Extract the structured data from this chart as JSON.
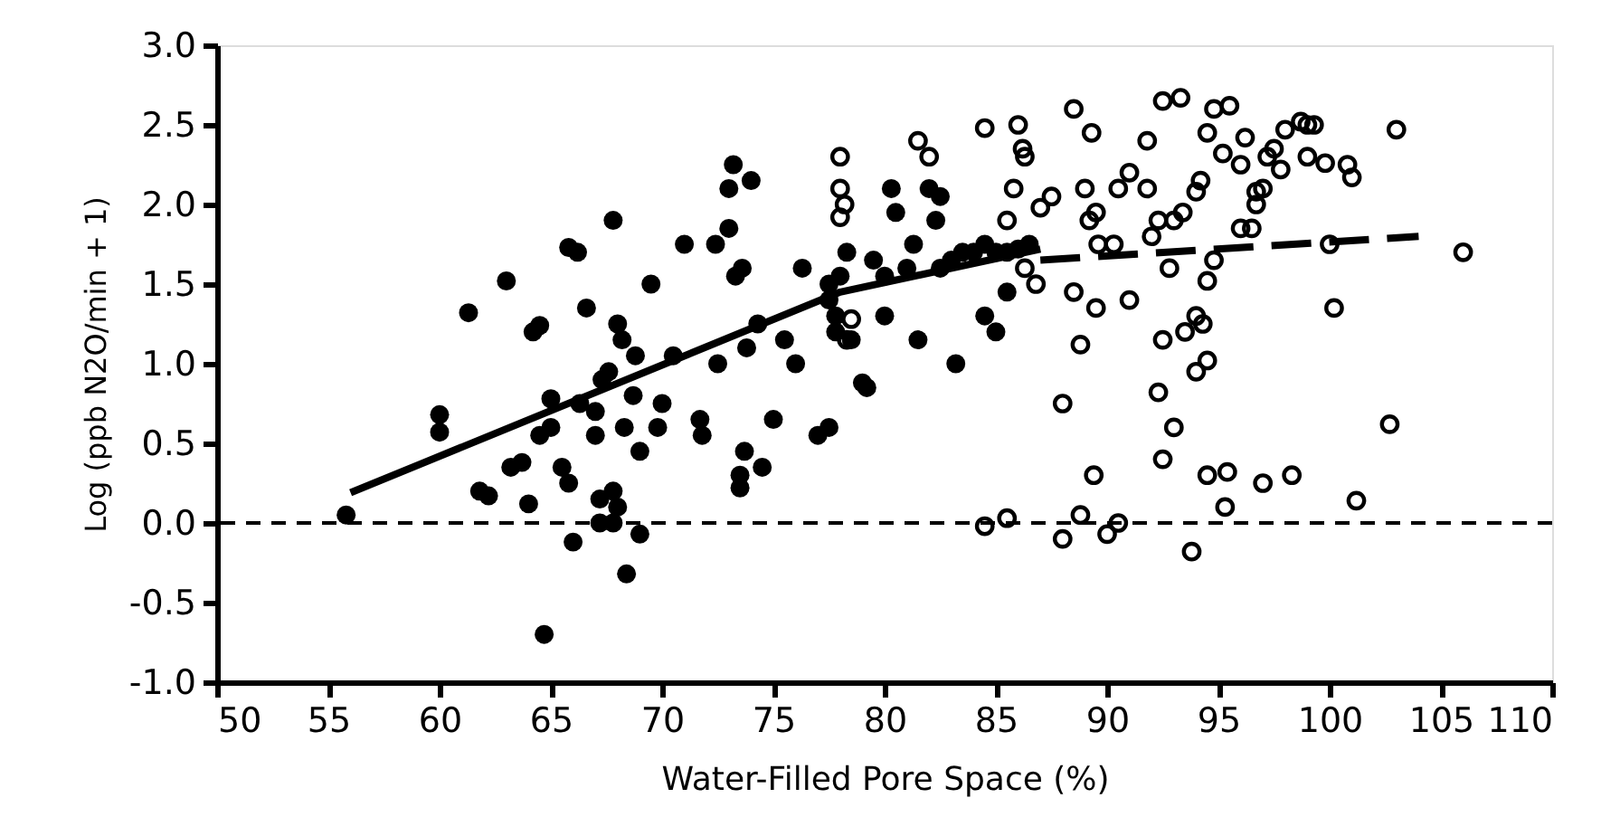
{
  "chart_data": {
    "type": "scatter",
    "xlabel": "Water-Filled Pore Space (%)",
    "ylabel": "Log (ppb N2O/min + 1)",
    "xlim": [
      50,
      110
    ],
    "xticks": [
      50,
      55,
      60,
      65,
      70,
      75,
      80,
      85,
      90,
      95,
      100,
      105,
      110
    ],
    "ylim": [
      -1.0,
      3.0
    ],
    "yticks": [
      {
        "value": -1.0,
        "label": "-1.0"
      },
      {
        "value": -0.5,
        "label": "-0.5"
      },
      {
        "value": 0,
        "label": "0.0"
      },
      {
        "value": 0.5,
        "label": "0.5"
      },
      {
        "value": 1.0,
        "label": "1.0"
      },
      {
        "value": 1.5,
        "label": "1.5"
      },
      {
        "value": 2.0,
        "label": "2.0"
      },
      {
        "value": 2.5,
        "label": "2.5"
      },
      {
        "value": 3.0,
        "label": "3.0"
      }
    ],
    "grid": false,
    "marker": "circle",
    "ref_lines": [
      {
        "axis": "y",
        "value": 0,
        "line_style": "dashed",
        "color": "#000000"
      }
    ],
    "series": [
      {
        "color": "#000000",
        "x": [
          55.8,
          60,
          60,
          61.3,
          61.8,
          62.2,
          63,
          63.2,
          63.7,
          64,
          64.2,
          64.5,
          64.5,
          64.7,
          65,
          65,
          65.5,
          65.8,
          65.8,
          66.2,
          66,
          66.3,
          66.6,
          67,
          67,
          67.2,
          67.8,
          67.2,
          67.8,
          68,
          67.3,
          67.6,
          67.8,
          68,
          68.2,
          68.3,
          68.4,
          68.8,
          68.7,
          69,
          69,
          69.5,
          69.8,
          70,
          70.5,
          71,
          71.7,
          71.8,
          72.4,
          72.5,
          73,
          73,
          73.2,
          73.3,
          73.6,
          73.5,
          73.5,
          73.7,
          73.8,
          74,
          74.3,
          74.5,
          75,
          75.5,
          76,
          76.3,
          77,
          77.5,
          77.5,
          77.8,
          77.8,
          77.5,
          78,
          78.3,
          78.5,
          79,
          79.2,
          79.5,
          80,
          80.3,
          80.5,
          81,
          81.3,
          81.5,
          82,
          82.3,
          82.5,
          83,
          83.2,
          83.5,
          84,
          84.5,
          85,
          85.5,
          86,
          86.5,
          84.5,
          85,
          85.5,
          82.5,
          80
        ],
        "values": [
          0.05,
          0.68,
          0.57,
          1.32,
          0.2,
          0.17,
          1.52,
          0.35,
          0.38,
          0.12,
          1.2,
          1.24,
          0.55,
          -0.7,
          0.78,
          0.6,
          0.35,
          0.25,
          1.73,
          1.7,
          -0.12,
          0.75,
          1.35,
          0.55,
          0.7,
          0.15,
          0.2,
          0.0,
          0.0,
          0.1,
          0.9,
          0.95,
          1.9,
          1.25,
          1.15,
          0.6,
          -0.32,
          1.05,
          0.8,
          -0.07,
          0.45,
          1.5,
          0.6,
          0.75,
          1.05,
          1.75,
          0.65,
          0.55,
          1.75,
          1.0,
          1.85,
          2.1,
          2.25,
          1.55,
          1.6,
          0.3,
          0.22,
          0.45,
          1.1,
          2.15,
          1.25,
          0.35,
          0.65,
          1.15,
          1.0,
          1.6,
          0.55,
          1.5,
          1.4,
          1.3,
          1.2,
          0.6,
          1.55,
          1.7,
          1.15,
          0.88,
          0.85,
          1.65,
          1.3,
          2.1,
          1.95,
          1.6,
          1.75,
          1.15,
          2.1,
          1.9,
          1.6,
          1.65,
          1.0,
          1.7,
          1.7,
          1.75,
          1.7,
          1.7,
          1.72,
          1.75,
          1.3,
          1.2,
          1.45,
          2.05,
          1.55
        ]
      },
      {
        "color": "#000000",
        "x": [
          78,
          78,
          78.2,
          78,
          78.5,
          78.3,
          81.5,
          82,
          84.5,
          84.5,
          85.5,
          85.5,
          85.8,
          86,
          86.2,
          86.3,
          86.3,
          86.8,
          87,
          87.5,
          88,
          88,
          88.5,
          88.5,
          88.8,
          88.8,
          89.3,
          89,
          89.2,
          89.5,
          89.6,
          89.5,
          89.4,
          90,
          90.5,
          90.3,
          90.5,
          91,
          91,
          91.8,
          91.8,
          92,
          92.3,
          92.3,
          92.5,
          92.5,
          92.5,
          92.8,
          93,
          93,
          93.4,
          93.3,
          93.5,
          93.8,
          94,
          94,
          94.3,
          94,
          94.2,
          94.5,
          94.5,
          94.5,
          94.8,
          94.5,
          94.8,
          95.2,
          95.3,
          95.4,
          95.5,
          96,
          96,
          96.2,
          96.5,
          96.7,
          96.7,
          97,
          97.2,
          97,
          97.5,
          97.8,
          98,
          98.3,
          98.7,
          99,
          99,
          99.3,
          99.8,
          100,
          100.2,
          100.8,
          101,
          101.2,
          102.7,
          103,
          106
        ],
        "values": [
          2.3,
          2.1,
          2.0,
          1.92,
          1.28,
          1.15,
          2.4,
          2.3,
          2.48,
          -0.02,
          0.03,
          1.9,
          2.1,
          2.5,
          2.35,
          2.3,
          1.6,
          1.5,
          1.98,
          2.05,
          0.75,
          -0.1,
          2.6,
          1.45,
          1.12,
          0.05,
          2.45,
          2.1,
          1.9,
          1.95,
          1.75,
          1.35,
          0.3,
          -0.07,
          0.0,
          1.75,
          2.1,
          2.2,
          1.4,
          2.4,
          2.1,
          1.8,
          1.9,
          0.82,
          0.4,
          2.65,
          1.15,
          1.6,
          0.6,
          1.9,
          1.95,
          2.67,
          1.2,
          -0.18,
          0.95,
          1.3,
          1.25,
          2.08,
          2.15,
          2.45,
          1.02,
          0.3,
          2.6,
          1.52,
          1.65,
          2.32,
          0.1,
          0.32,
          2.62,
          1.85,
          2.25,
          2.42,
          1.85,
          2.08,
          2.0,
          2.1,
          2.3,
          0.25,
          2.35,
          2.22,
          2.47,
          0.3,
          2.52,
          2.5,
          2.3,
          2.5,
          2.26,
          1.75,
          1.35,
          2.25,
          2.17,
          0.14,
          0.62,
          2.47,
          1.7
        ]
      },
      {
        "type": "line",
        "color": "#000000",
        "line_style": "solid",
        "marker": "none",
        "x": [
          56,
          78,
          87
        ],
        "values": [
          0.19,
          1.45,
          1.72
        ]
      },
      {
        "type": "line",
        "color": "#000000",
        "line_style": "dashed",
        "marker": "none",
        "x": [
          87,
          104
        ],
        "values": [
          1.65,
          1.8
        ]
      }
    ]
  }
}
